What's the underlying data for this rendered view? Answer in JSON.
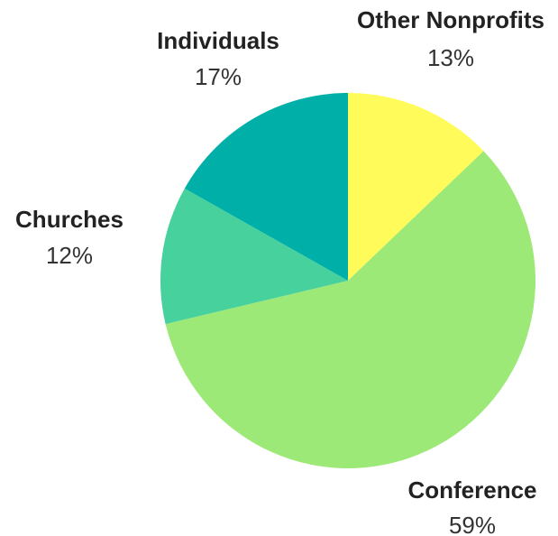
{
  "chart_data": {
    "type": "pie",
    "start_angle_deg": 0,
    "direction": "clockwise",
    "slices": [
      {
        "label": "Other Nonprofits",
        "value": 13,
        "value_label": "13%",
        "color": "#FFFB5A"
      },
      {
        "label": "Conference",
        "value": 59,
        "value_label": "59%",
        "color": "#9DE977"
      },
      {
        "label": "Churches",
        "value": 12,
        "value_label": "12%",
        "color": "#47D19C"
      },
      {
        "label": "Individuals",
        "value": 17,
        "value_label": "17%",
        "color": "#00B0A8"
      }
    ],
    "legend": "none"
  }
}
